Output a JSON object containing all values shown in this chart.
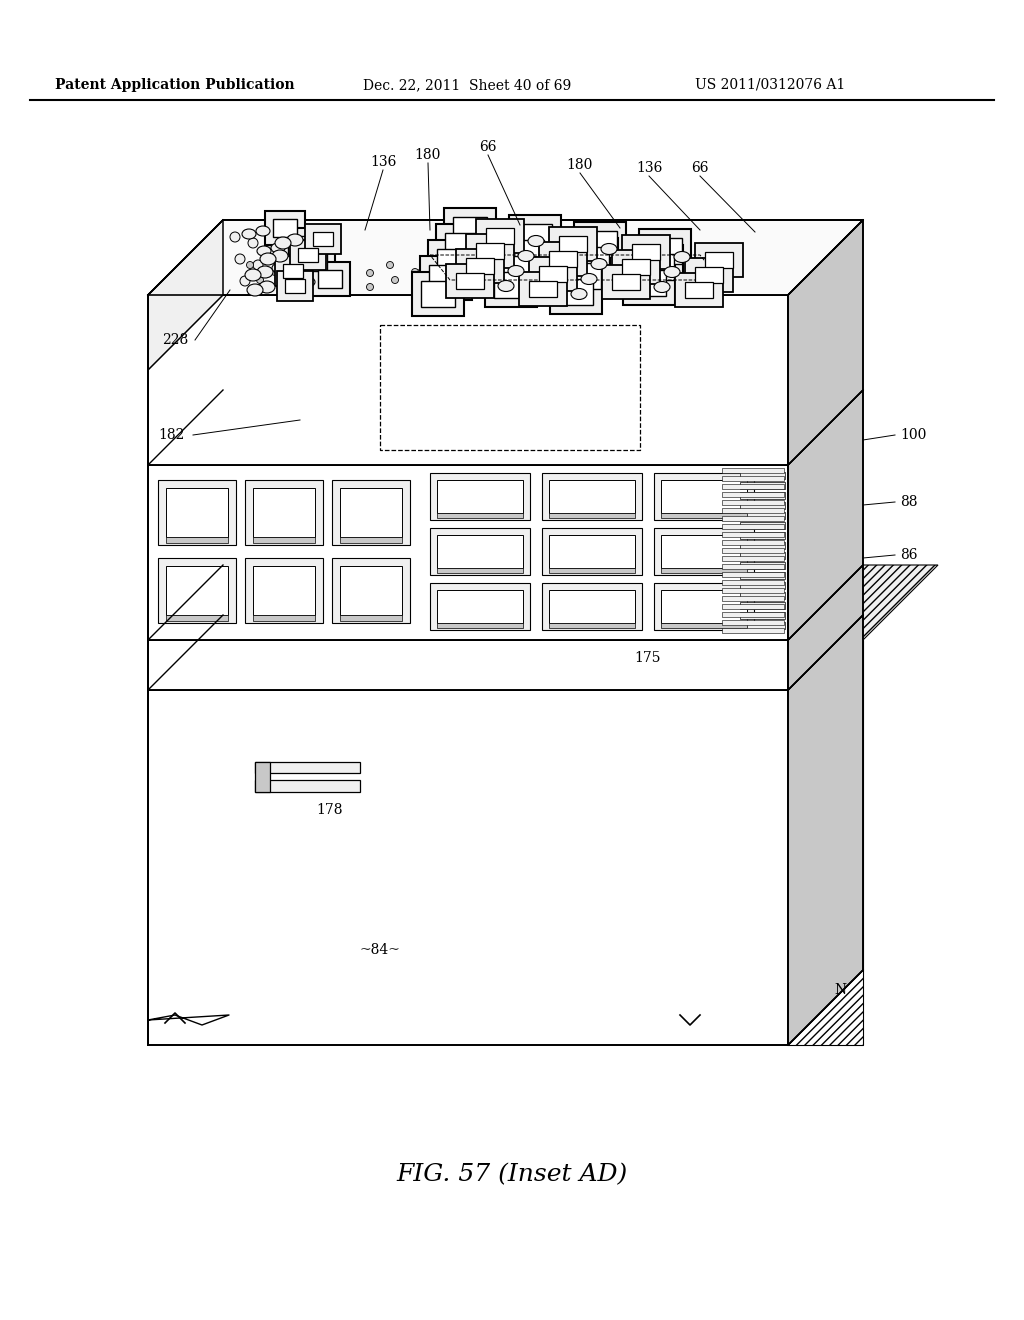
{
  "title": "FIG. 57 (Inset AD)",
  "header_left": "Patent Application Publication",
  "header_middle": "Dec. 22, 2011  Sheet 40 of 69",
  "header_right": "US 2011/0312076 A1",
  "bg": "#ffffff",
  "labels": [
    "136",
    "180",
    "66",
    "180",
    "136",
    "66",
    "228",
    "182",
    "100",
    "88",
    "86",
    "175",
    "178",
    "84",
    "N"
  ]
}
